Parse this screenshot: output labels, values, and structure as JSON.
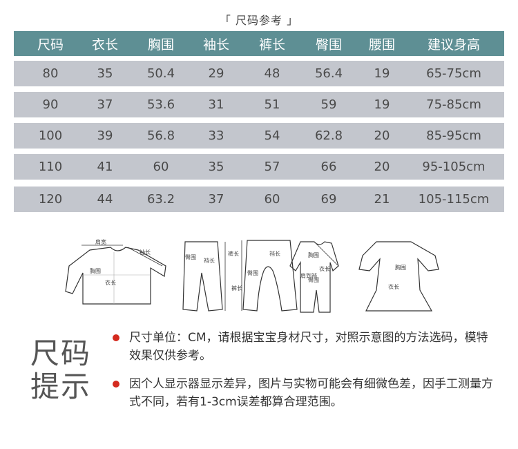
{
  "title": "「 尺码参考 」",
  "table": {
    "headers": [
      "尺码",
      "衣长",
      "胸围",
      "袖长",
      "裤长",
      "臀围",
      "腰围",
      "建议身高"
    ],
    "rows": [
      [
        "80",
        "35",
        "50.4",
        "29",
        "48",
        "56.4",
        "19",
        "65-75cm"
      ],
      [
        "90",
        "37",
        "53.6",
        "31",
        "51",
        "59",
        "19",
        "75-85cm"
      ],
      [
        "100",
        "39",
        "56.8",
        "33",
        "54",
        "62.8",
        "20",
        "85-95cm"
      ],
      [
        "110",
        "41",
        "60",
        "35",
        "57",
        "66",
        "20",
        "95-105cm"
      ],
      [
        "120",
        "44",
        "63.2",
        "37",
        "60",
        "69",
        "21",
        "105-115cm"
      ]
    ]
  },
  "diagram_labels": {
    "shoulder": "肩宽",
    "sleeve": "袖长",
    "chest": "胸围",
    "length": "衣长",
    "hip": "臀围",
    "crotch": "裆长",
    "pants_length": "裤长",
    "shoulder_to_crotch": "肩到裆"
  },
  "tips": {
    "heading_line1": "尺码",
    "heading_line2": "提示",
    "items": [
      "尺寸单位：CM，请根据宝宝身材尺寸，对照示意图的方法选码，模特效果仅供参考。",
      "因个人显示器显示差异，图片与实物可能会有细微色差，因手工测量方式不同，若有1-3cm误差都算合理范围。"
    ],
    "bullet_color": "#d42a1e"
  },
  "colors": {
    "header": "#5e8f94",
    "row": "#c3c6cd"
  }
}
